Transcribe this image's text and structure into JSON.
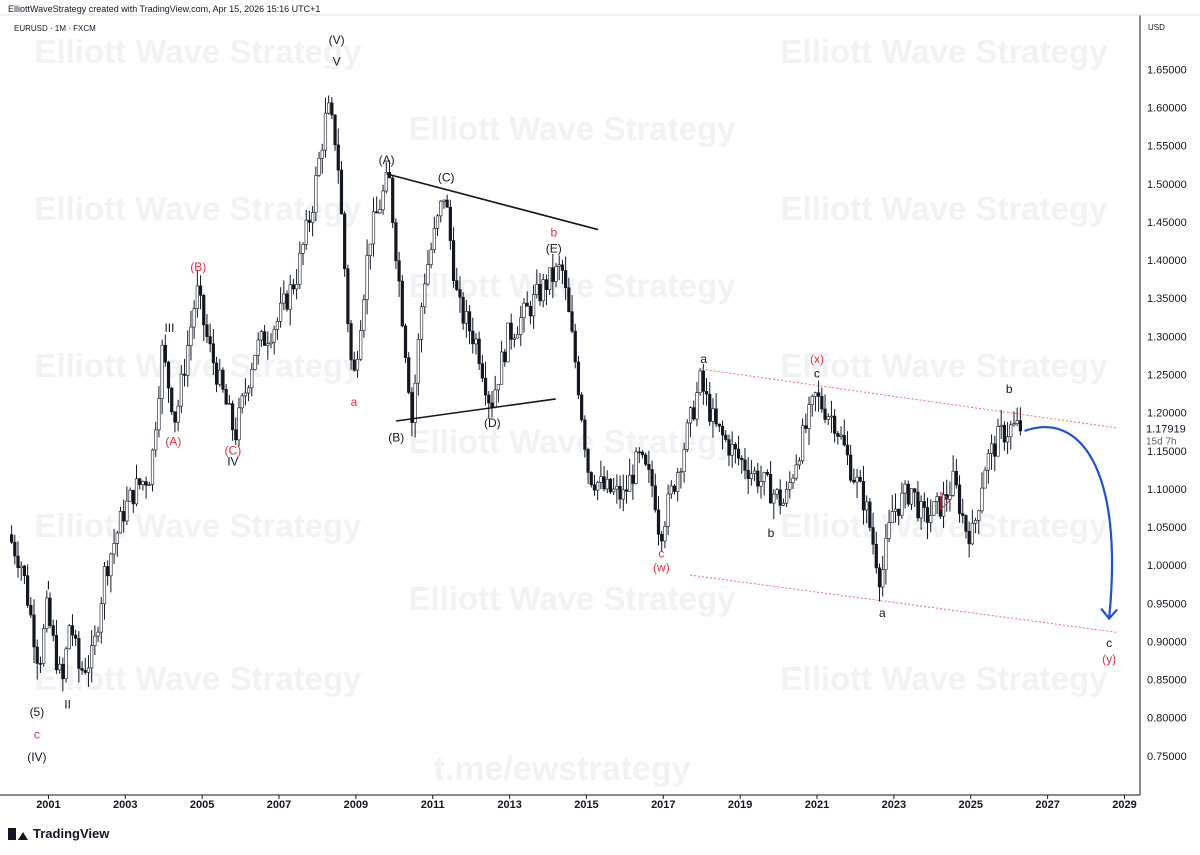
{
  "header": {
    "credit": "ElliottWaveStrategy created with TradingView.com, Apr 15, 2026 15:16 UTC+1",
    "symbol": "EURUSD · 1M · FXCM"
  },
  "brand": {
    "logo_text": "TradingView"
  },
  "watermarks": {
    "name": "Elliott Wave Strategy",
    "link": "t.me/ewstrategy"
  },
  "colors": {
    "candle": "#131722",
    "red_label": "#e02f44",
    "channel": "#f06b7b",
    "arrow": "#1e4fd8",
    "trendline": "#131722"
  },
  "chart_data": {
    "type": "candlestick",
    "symbol": "EURUSD",
    "interval": "1M",
    "source": "FXCM",
    "currency_label": "USD",
    "ylim": [
      0.7,
      1.72
    ],
    "xlim": [
      2000.0,
      2029.3
    ],
    "y_ticks": [
      "0.75000",
      "0.80000",
      "0.85000",
      "0.90000",
      "0.95000",
      "1.00000",
      "1.05000",
      "1.10000",
      "1.15000",
      "1.20000",
      "1.25000",
      "1.30000",
      "1.35000",
      "1.40000",
      "1.45000",
      "1.50000",
      "1.55000",
      "1.60000",
      "1.65000"
    ],
    "x_ticks": [
      "2001",
      "2003",
      "2005",
      "2007",
      "2009",
      "2011",
      "2013",
      "2015",
      "2017",
      "2019",
      "2021",
      "2023",
      "2025",
      "2027",
      "2029"
    ],
    "last_price": "1.17919",
    "countdown": "15d 7h",
    "price_path": [
      [
        2000.0,
        1.04
      ],
      [
        2000.35,
        1.0
      ],
      [
        2000.8,
        0.87
      ],
      [
        2001.0,
        0.94
      ],
      [
        2001.4,
        0.84
      ],
      [
        2001.6,
        0.93
      ],
      [
        2001.85,
        0.86
      ],
      [
        2002.2,
        0.88
      ],
      [
        2002.5,
        0.99
      ],
      [
        2003.0,
        1.07
      ],
      [
        2003.3,
        1.1
      ],
      [
        2003.7,
        1.12
      ],
      [
        2004.0,
        1.28
      ],
      [
        2004.35,
        1.19
      ],
      [
        2004.9,
        1.36
      ],
      [
        2005.2,
        1.29
      ],
      [
        2005.9,
        1.17
      ],
      [
        2006.4,
        1.28
      ],
      [
        2007.0,
        1.32
      ],
      [
        2007.5,
        1.38
      ],
      [
        2007.9,
        1.47
      ],
      [
        2008.3,
        1.6
      ],
      [
        2008.55,
        1.55
      ],
      [
        2008.9,
        1.27
      ],
      [
        2009.0,
        1.25
      ],
      [
        2009.4,
        1.43
      ],
      [
        2009.9,
        1.51
      ],
      [
        2010.4,
        1.25
      ],
      [
        2010.5,
        1.19
      ],
      [
        2010.8,
        1.37
      ],
      [
        2011.35,
        1.49
      ],
      [
        2011.7,
        1.34
      ],
      [
        2012.2,
        1.29
      ],
      [
        2012.55,
        1.21
      ],
      [
        2013.0,
        1.3
      ],
      [
        2013.45,
        1.33
      ],
      [
        2014.0,
        1.37
      ],
      [
        2014.4,
        1.39
      ],
      [
        2014.8,
        1.25
      ],
      [
        2015.1,
        1.12
      ],
      [
        2015.5,
        1.1
      ],
      [
        2016.0,
        1.09
      ],
      [
        2016.4,
        1.14
      ],
      [
        2016.8,
        1.1
      ],
      [
        2016.95,
        1.04
      ],
      [
        2017.5,
        1.14
      ],
      [
        2018.0,
        1.24
      ],
      [
        2018.4,
        1.18
      ],
      [
        2019.0,
        1.14
      ],
      [
        2019.6,
        1.11
      ],
      [
        2020.2,
        1.08
      ],
      [
        2020.5,
        1.14
      ],
      [
        2021.0,
        1.22
      ],
      [
        2021.5,
        1.19
      ],
      [
        2021.9,
        1.13
      ],
      [
        2022.3,
        1.08
      ],
      [
        2022.7,
        0.98
      ],
      [
        2023.0,
        1.07
      ],
      [
        2023.5,
        1.1
      ],
      [
        2023.8,
        1.06
      ],
      [
        2024.3,
        1.08
      ],
      [
        2024.6,
        1.11
      ],
      [
        2024.9,
        1.05
      ],
      [
        2025.1,
        1.04
      ],
      [
        2025.4,
        1.13
      ],
      [
        2025.8,
        1.17
      ],
      [
        2026.1,
        1.18
      ],
      [
        2026.3,
        1.18
      ]
    ],
    "wave_labels": [
      {
        "text": "(5)",
        "x": 2000.7,
        "y": 0.802,
        "color": "black"
      },
      {
        "text": "c",
        "x": 2000.7,
        "y": 0.773,
        "color": "red"
      },
      {
        "text": "(IV)",
        "x": 2000.7,
        "y": 0.743,
        "color": "black"
      },
      {
        "text": "I",
        "x": 2001.0,
        "y": 0.968,
        "color": "black"
      },
      {
        "text": "II",
        "x": 2001.5,
        "y": 0.812,
        "color": "black"
      },
      {
        "text": "(A)",
        "x": 2004.25,
        "y": 1.157,
        "color": "red"
      },
      {
        "text": "III",
        "x": 2004.15,
        "y": 1.306,
        "color": "black"
      },
      {
        "text": "(B)",
        "x": 2004.9,
        "y": 1.386,
        "color": "red"
      },
      {
        "text": "(C)",
        "x": 2005.8,
        "y": 1.145,
        "color": "red"
      },
      {
        "text": "IV",
        "x": 2005.8,
        "y": 1.131,
        "color": "black"
      },
      {
        "text": "(V)",
        "x": 2008.5,
        "y": 1.683,
        "color": "black"
      },
      {
        "text": "V",
        "x": 2008.5,
        "y": 1.655,
        "color": "black"
      },
      {
        "text": "a",
        "x": 2008.95,
        "y": 1.209,
        "color": "red"
      },
      {
        "text": "(A)",
        "x": 2009.8,
        "y": 1.526,
        "color": "black"
      },
      {
        "text": "(B)",
        "x": 2010.05,
        "y": 1.162,
        "color": "black"
      },
      {
        "text": "(C)",
        "x": 2011.35,
        "y": 1.503,
        "color": "black"
      },
      {
        "text": "(D)",
        "x": 2012.55,
        "y": 1.181,
        "color": "black"
      },
      {
        "text": "b",
        "x": 2014.15,
        "y": 1.431,
        "color": "red"
      },
      {
        "text": "(E)",
        "x": 2014.15,
        "y": 1.41,
        "color": "black"
      },
      {
        "text": "c",
        "x": 2016.95,
        "y": 1.01,
        "color": "red"
      },
      {
        "text": "(w)",
        "x": 2016.95,
        "y": 0.992,
        "color": "red"
      },
      {
        "text": "a",
        "x": 2018.05,
        "y": 1.265,
        "color": "black"
      },
      {
        "text": "b",
        "x": 2019.8,
        "y": 1.037,
        "color": "black"
      },
      {
        "text": "(x)",
        "x": 2021.0,
        "y": 1.265,
        "color": "red"
      },
      {
        "text": "c",
        "x": 2021.0,
        "y": 1.246,
        "color": "black"
      },
      {
        "text": "a",
        "x": 2022.7,
        "y": 0.932,
        "color": "black"
      },
      {
        "text": "b",
        "x": 2026.0,
        "y": 1.226,
        "color": "black"
      },
      {
        "text": "c",
        "x": 2028.6,
        "y": 0.893,
        "color": "black"
      },
      {
        "text": "(y)",
        "x": 2028.6,
        "y": 0.872,
        "color": "red"
      }
    ],
    "triangle_upper": [
      [
        2009.8,
        1.513
      ],
      [
        2015.3,
        1.44
      ]
    ],
    "triangle_lower": [
      [
        2010.05,
        1.189
      ],
      [
        2014.2,
        1.218
      ]
    ],
    "channel_upper": [
      [
        2018.0,
        1.257
      ],
      [
        2028.8,
        1.18
      ]
    ],
    "channel_lower": [
      [
        2017.7,
        0.987
      ],
      [
        2028.8,
        0.912
      ]
    ],
    "projection_arrow": {
      "from": [
        2026.4,
        1.176
      ],
      "to": [
        2028.6,
        0.93
      ]
    }
  }
}
